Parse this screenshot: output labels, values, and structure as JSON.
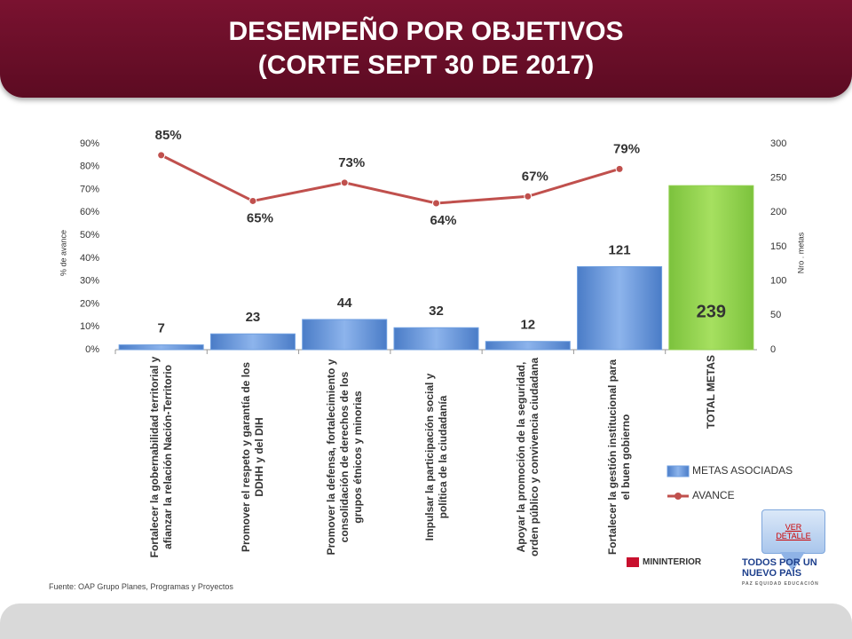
{
  "header": {
    "title_lines": [
      "DESEMPEÑO POR OBJETIVOS",
      "(CORTE SEPT 30 DE 2017)"
    ]
  },
  "chart_data": {
    "type": "bar-line",
    "categories": [
      "Fortalecer la gobernabilidad territorial y afianzar la relación Nación-Territorio",
      "Promover el respeto y garantía de los DDHH y del DIH",
      "Promover la defensa, fortalecimiento y consolidación de derechos de los grupos étnicos y minorias",
      "Impulsar la participación social y política de la ciudadanía",
      "Apoyar la promoción de la seguridad, orden público y convivencia ciudadana",
      "Fortalecer la gestión institucional para el buen gobierno",
      "TOTAL METAS"
    ],
    "series": [
      {
        "name": "METAS ASOCIADAS",
        "type": "bar",
        "axis": "y2",
        "color": "#6f9fe0",
        "colors": [
          "#6f9fe0",
          "#6f9fe0",
          "#6f9fe0",
          "#6f9fe0",
          "#6f9fe0",
          "#6f9fe0",
          "#92d050"
        ],
        "values": [
          7,
          23,
          44,
          32,
          12,
          121,
          239
        ]
      },
      {
        "name": "AVANCE",
        "type": "line",
        "color": "#c0504d",
        "values": [
          85,
          65,
          73,
          64,
          67,
          79,
          null
        ],
        "value_labels": [
          "85%",
          "65%",
          "73%",
          "64%",
          "67%",
          "79%",
          null
        ]
      }
    ],
    "ylabel": "% de avance",
    "y2label": "Nro . metas",
    "ylim": [
      0,
      90
    ],
    "yticks": [
      {
        "value": 0,
        "label": "0%"
      },
      {
        "value": 10,
        "label": "10%"
      },
      {
        "value": 20,
        "label": "20%"
      },
      {
        "value": 30,
        "label": "30%"
      },
      {
        "value": 40,
        "label": "40%"
      },
      {
        "value": 50,
        "label": "50%"
      },
      {
        "value": 60,
        "label": "60%"
      },
      {
        "value": 70,
        "label": "70%"
      },
      {
        "value": 80,
        "label": "80%"
      },
      {
        "value": 90,
        "label": "90%"
      }
    ],
    "y2lim": [
      0,
      300
    ],
    "y2ticks": [
      0,
      50,
      100,
      150,
      200,
      250,
      300
    ],
    "grid": false,
    "legend": "lower right"
  },
  "footer": {
    "source": "Fuente: OAP Grupo Planes, Programas y Proyectos",
    "button": [
      "VER",
      "DETALLE"
    ],
    "logo_ministry": "MININTERIOR",
    "logo_gov": [
      "TODOS POR UN",
      "NUEVO PAÍS",
      "PAZ  EQUIDAD  EDUCACIÓN"
    ]
  }
}
